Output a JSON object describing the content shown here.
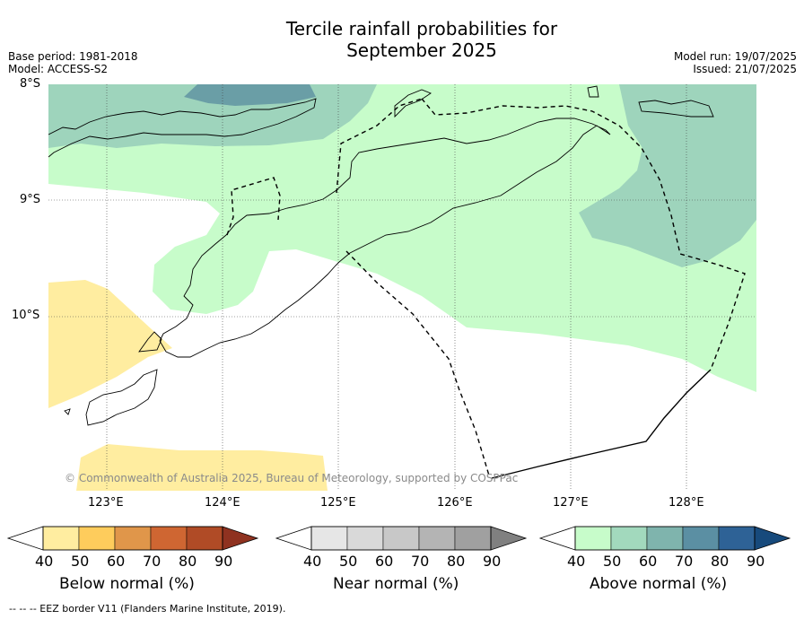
{
  "title_line1": "Tercile rainfall probabilities for",
  "title_line2": "September 2025",
  "base_period": "Base period: 1981-2018",
  "model": "Model: ACCESS-S2",
  "model_run": "Model run: 19/07/2025",
  "issued": "Issued: 21/07/2025",
  "latitudes": [
    "8°S",
    "9°S",
    "10°S"
  ],
  "longitudes": [
    "123°E",
    "124°E",
    "125°E",
    "126°E",
    "127°E",
    "128°E"
  ],
  "copyright": "© Commonwealth of Australia 2025, Bureau of Meteorology, supported by COSPPac",
  "footer": "--  --  -- EEZ border V11 (Flanders Marine Institute, 2019).",
  "colorbars": [
    {
      "title": "Below normal (%)",
      "ticks": [
        "40",
        "50",
        "60",
        "70",
        "80",
        "90"
      ],
      "colors": [
        "#ffeda0",
        "#fecc5c",
        "#e0964a",
        "#cf6632",
        "#b04b26",
        "#8f3220"
      ]
    },
    {
      "title": "Near normal (%)",
      "ticks": [
        "40",
        "50",
        "60",
        "70",
        "80",
        "90"
      ],
      "colors": [
        "#e6e6e6",
        "#d9d9d9",
        "#c8c8c8",
        "#b4b4b4",
        "#a0a0a0",
        "#808080"
      ]
    },
    {
      "title": "Above normal (%)",
      "ticks": [
        "40",
        "50",
        "60",
        "70",
        "80",
        "90"
      ],
      "colors": [
        "#c7fcca",
        "#a2d9bd",
        "#7fb4ad",
        "#5b8fa3",
        "#2e6296",
        "#174a7c"
      ]
    }
  ],
  "colors": {
    "above_40": "#c7fcca",
    "above_50": "#9ed4bc",
    "above_60": "#6a9ea6",
    "below_40": "#ffeda0"
  }
}
